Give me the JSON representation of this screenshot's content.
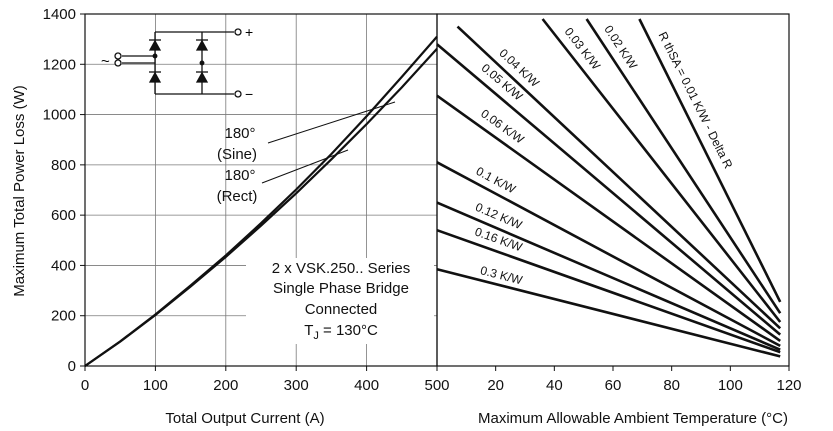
{
  "chart_data": {
    "type": "line",
    "left_panel": {
      "xlabel": "Total Output Current (A)",
      "ylabel": "Maximum Total Power Loss (W)",
      "xlim": [
        0,
        500
      ],
      "ylim": [
        0,
        1400
      ],
      "x_ticks": [
        "0",
        "100",
        "200",
        "300",
        "400",
        "500"
      ],
      "y_ticks": [
        "0",
        "200",
        "400",
        "600",
        "800",
        "1000",
        "1200",
        "1400"
      ],
      "series": [
        {
          "name": "180° (Sine)",
          "x": [
            0,
            50,
            100,
            150,
            200,
            250,
            300,
            350,
            400,
            450,
            500
          ],
          "y": [
            0,
            98,
            205,
            320,
            440,
            568,
            702,
            843,
            993,
            1150,
            1310
          ]
        },
        {
          "name": "180° (Rect)",
          "x": [
            0,
            50,
            100,
            150,
            200,
            250,
            300,
            350,
            400,
            450,
            500
          ],
          "y": [
            0,
            97,
            203,
            316,
            434,
            558,
            687,
            822,
            962,
            1108,
            1262
          ]
        }
      ],
      "annotations": [
        {
          "lines": [
            "180°",
            "(Sine)"
          ]
        },
        {
          "lines": [
            "180°",
            "(Rect)"
          ]
        },
        {
          "lines": [
            "2 x VSK.250.. Series",
            "Single Phase Bridge",
            "Connected",
            "T",
            "J",
            " = 130°C"
          ]
        }
      ]
    },
    "right_panel": {
      "xlabel": "Maximum Allowable Ambient Temperature (°C)",
      "xlim": [
        0,
        120
      ],
      "x_ticks": [
        "20",
        "40",
        "60",
        "80",
        "100",
        "120"
      ],
      "series": [
        {
          "name": "R thSA = 0.01 K/W - Delta R",
          "x": [
            69,
            117
          ],
          "y": [
            1380,
            255
          ]
        },
        {
          "name": "0.02 K/W",
          "x": [
            51,
            117
          ],
          "y": [
            1380,
            210
          ]
        },
        {
          "name": "0.03 K/W",
          "x": [
            36,
            117
          ],
          "y": [
            1380,
            175
          ]
        },
        {
          "name": "0.04 K/W",
          "x": [
            7,
            117
          ],
          "y": [
            1350,
            150
          ]
        },
        {
          "name": "0.05 K/W",
          "x": [
            0,
            117
          ],
          "y": [
            1280,
            125
          ]
        },
        {
          "name": "0.06 K/W",
          "x": [
            0,
            117
          ],
          "y": [
            1075,
            100
          ]
        },
        {
          "name": "0.1 K/W",
          "x": [
            0,
            117
          ],
          "y": [
            810,
            80
          ]
        },
        {
          "name": "0.12 K/W",
          "x": [
            0,
            117
          ],
          "y": [
            650,
            65
          ]
        },
        {
          "name": "0.16 K/W",
          "x": [
            0,
            117
          ],
          "y": [
            540,
            55
          ]
        },
        {
          "name": "0.3 K/W",
          "x": [
            0,
            117
          ],
          "y": [
            385,
            38
          ]
        }
      ],
      "labels": [
        "R thSA = 0.01 K/W - Delta R",
        "0.02 K/W",
        "0.03 K/W",
        "0.04 K/W",
        "0.05 K/W",
        "0.06 K/W",
        "0.1 K/W",
        "0.12 K/W",
        "0.16 K/W",
        "0.3 K/W"
      ]
    },
    "inset": {
      "plus": "+",
      "minus": "−",
      "tilde": "~"
    }
  }
}
